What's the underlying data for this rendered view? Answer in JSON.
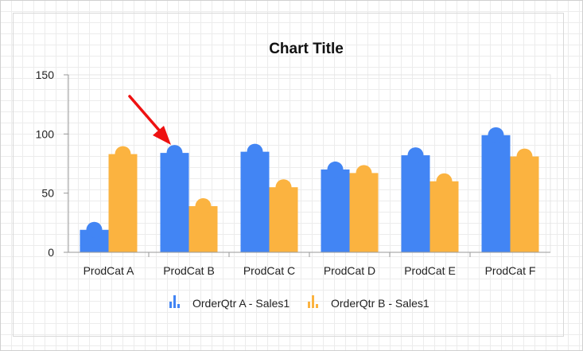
{
  "chart_data": {
    "type": "bar",
    "title": "Chart Title",
    "categories": [
      "ProdCat A",
      "ProdCat B",
      "ProdCat C",
      "ProdCat D",
      "ProdCat E",
      "ProdCat F"
    ],
    "series": [
      {
        "name": "OrderQtr A - Sales1",
        "color": "#4285f4",
        "values": [
          19,
          84,
          85,
          70,
          82,
          99
        ]
      },
      {
        "name": "OrderQtr B - Sales1",
        "color": "#fbb340",
        "values": [
          83,
          39,
          55,
          67,
          60,
          81
        ]
      }
    ],
    "ylim": [
      0,
      150
    ],
    "yticks": [
      "0",
      "50",
      "100",
      "150"
    ],
    "legend_position": "bottom",
    "bar_cap": "semicircle",
    "grid": false
  },
  "annotation": {
    "type": "arrow",
    "color": "#ee1111",
    "target": "ProdCat B"
  },
  "frame_color": "#d0d0d0"
}
